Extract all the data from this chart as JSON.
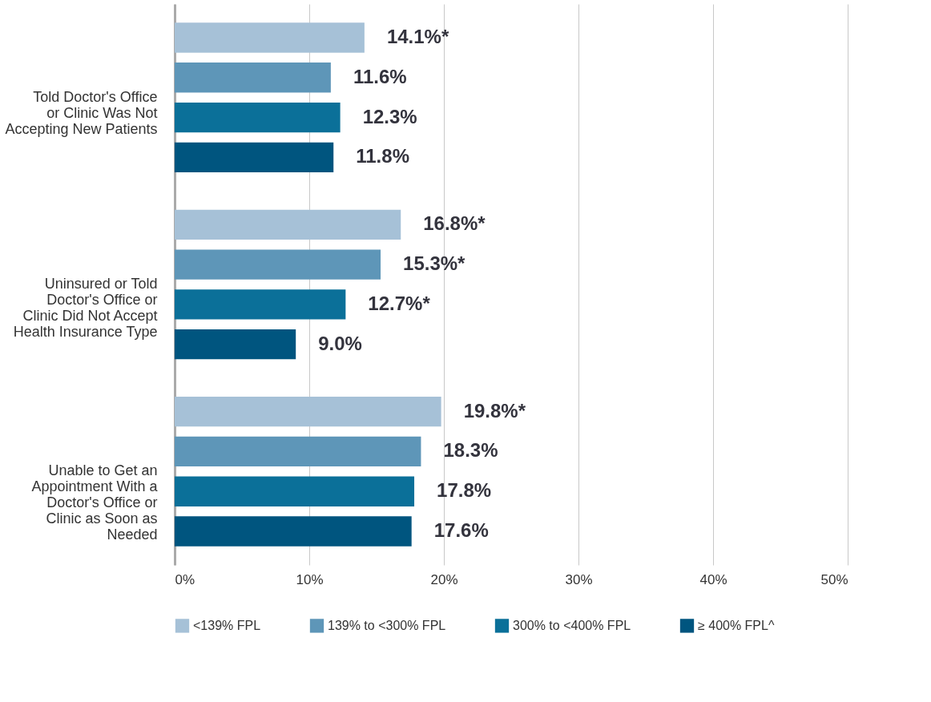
{
  "chart_data": {
    "type": "bar",
    "orientation": "horizontal",
    "categories": [
      "Told Doctor's Office or Clinic Was Not Accepting New Patients",
      "Uninsured or Told Doctor's Office or Clinic Did Not Accept Health Insurance Type",
      "Unable to Get an Appointment With a Doctor's Office or Clinic as Soon as Needed"
    ],
    "series": [
      {
        "name": "<139% FPL",
        "color": "#a6c1d7",
        "values": [
          14.1,
          16.8,
          19.8
        ],
        "value_labels": [
          "14.1%*",
          "16.8%*",
          "19.8%*"
        ]
      },
      {
        "name": "139% to <300% FPL",
        "color": "#5e96b8",
        "values": [
          11.6,
          15.3,
          18.3
        ],
        "value_labels": [
          "11.6%",
          "15.3%*",
          "18.3%"
        ]
      },
      {
        "name": "300% to <400% FPL",
        "color": "#0b7099",
        "values": [
          12.3,
          12.7,
          17.8
        ],
        "value_labels": [
          "12.3%",
          "12.7%*",
          "17.8%"
        ]
      },
      {
        "name": "≥ 400% FPL^",
        "color": "#00557f",
        "values": [
          11.8,
          9.0,
          17.6
        ],
        "value_labels": [
          "11.8%",
          "9.0%",
          "17.6%"
        ]
      }
    ],
    "xlim": [
      0,
      50
    ],
    "xticks": [
      {
        "value": 0,
        "label": "0%"
      },
      {
        "value": 10,
        "label": "10%"
      },
      {
        "value": 20,
        "label": "20%"
      },
      {
        "value": 30,
        "label": "30%"
      },
      {
        "value": 40,
        "label": "40%"
      },
      {
        "value": 50,
        "label": "50%"
      }
    ],
    "grid": "x",
    "legend": "bottom"
  }
}
